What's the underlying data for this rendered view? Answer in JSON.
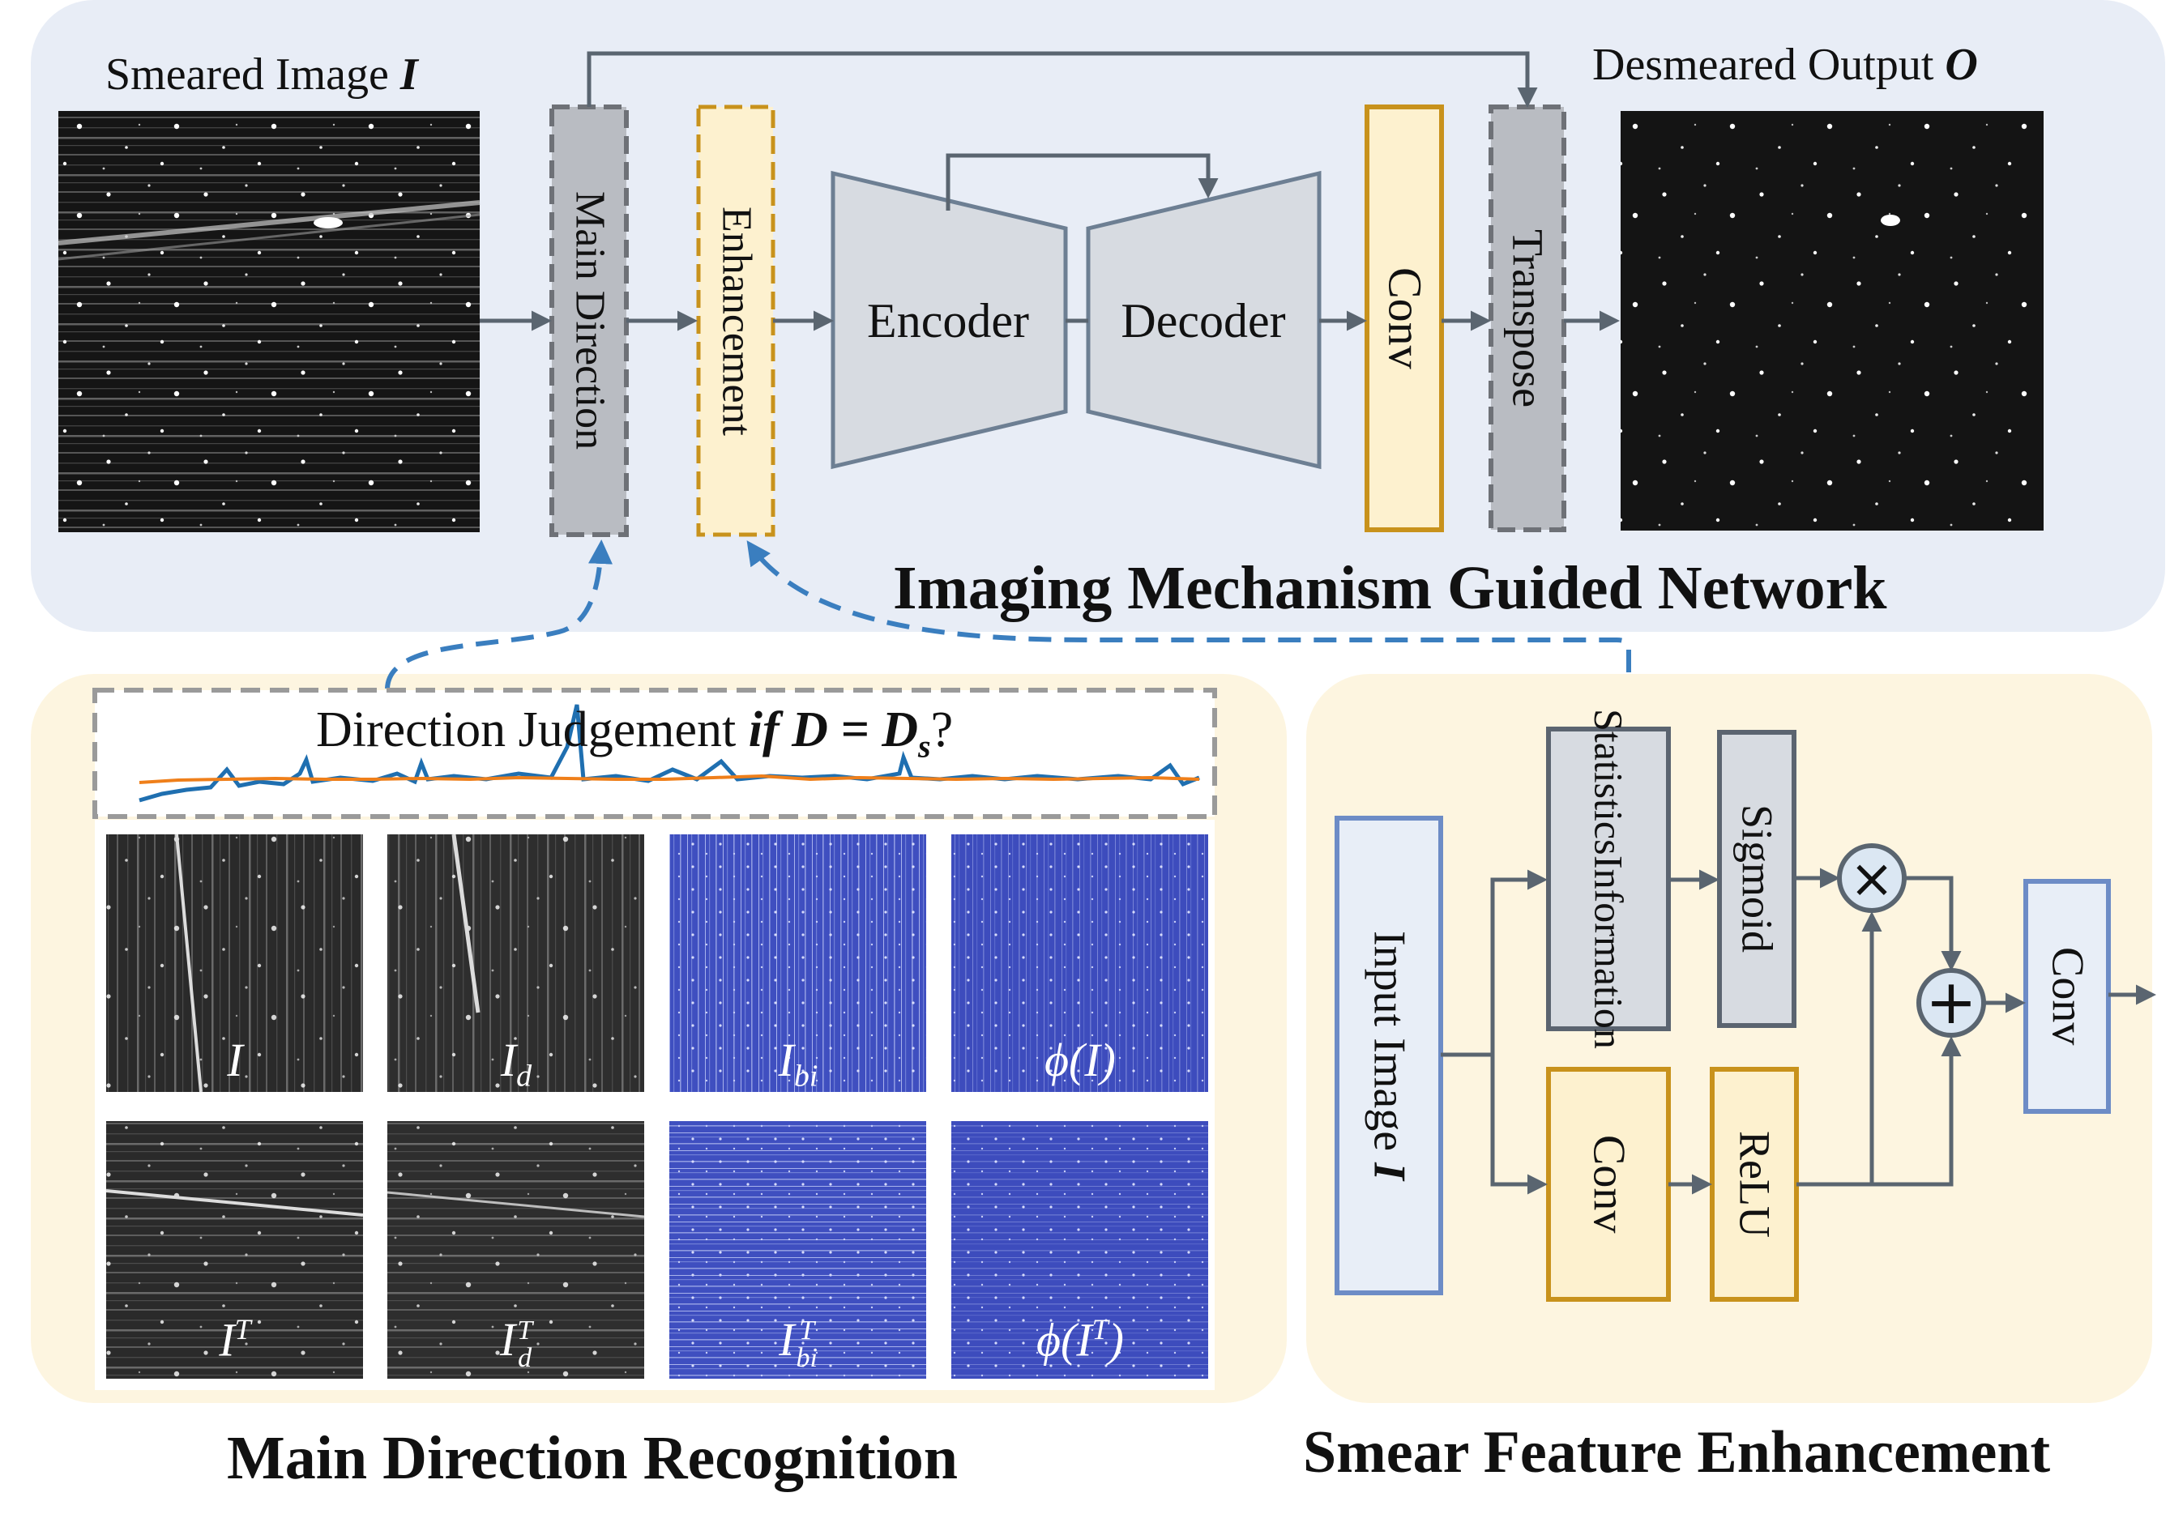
{
  "network": {
    "title": "Imaging Mechanism Guided Network",
    "input_label": "Smeared Image ",
    "input_symbol": "I",
    "output_label": "Desmeared Output ",
    "output_symbol": "O",
    "blocks": {
      "main_direction": "Main Direction",
      "enhancement": "Enhancement",
      "encoder": "Encoder",
      "decoder": "Decoder",
      "conv": "Conv",
      "transpose": "Transpose"
    }
  },
  "mdr": {
    "title": "Main Direction Recognition",
    "judgement_text": "Direction  Judgement ",
    "judgement_formula": "if D = D",
    "judgement_sub": "s",
    "judgement_tail": "?",
    "tiles_row1": [
      {
        "label": "I",
        "sub": "",
        "sup": ""
      },
      {
        "label": "I",
        "sub": "d",
        "sup": ""
      },
      {
        "label": "I",
        "sub": "bi",
        "sup": ""
      },
      {
        "label": "ϕ(I)",
        "sub": "",
        "sup": ""
      }
    ],
    "tiles_row2": [
      {
        "label": "I",
        "sub": "",
        "sup": "T"
      },
      {
        "label": "I",
        "sub": "d",
        "sup": "T"
      },
      {
        "label": "I",
        "sub": "bi",
        "sup": "T"
      },
      {
        "label": "ϕ(I",
        "sub": "",
        "sup": "T",
        "tail": ")"
      }
    ]
  },
  "sfe": {
    "title": "Smear Feature Enhancement",
    "input_label": "Input Image ",
    "input_symbol": "I",
    "statistics_line1": "Statistics",
    "statistics_line2": "Information",
    "sigmoid": "Sigmoid",
    "conv": "Conv",
    "relu": "ReLU",
    "out_conv": "Conv",
    "multiply_symbol": "×",
    "add_symbol": "+"
  },
  "colors": {
    "top_panel_bg": "#e8edf6",
    "bottom_panel_bg": "#fdf5e0",
    "gray_block": "#b9bcc2",
    "gray_block_border": "#6e7177",
    "orange_border": "#c8921c",
    "orange_fill": "#fdf1cf",
    "enc_dec_fill": "#d7dbe1",
    "enc_dec_border": "#6d7f93",
    "blue_dash": "#3a7ebf",
    "arrow": "#5a6570",
    "tile_blue": "#3f4fc0",
    "light_blue_box": "#e8eef7",
    "light_blue_border": "#6d8cc6"
  }
}
